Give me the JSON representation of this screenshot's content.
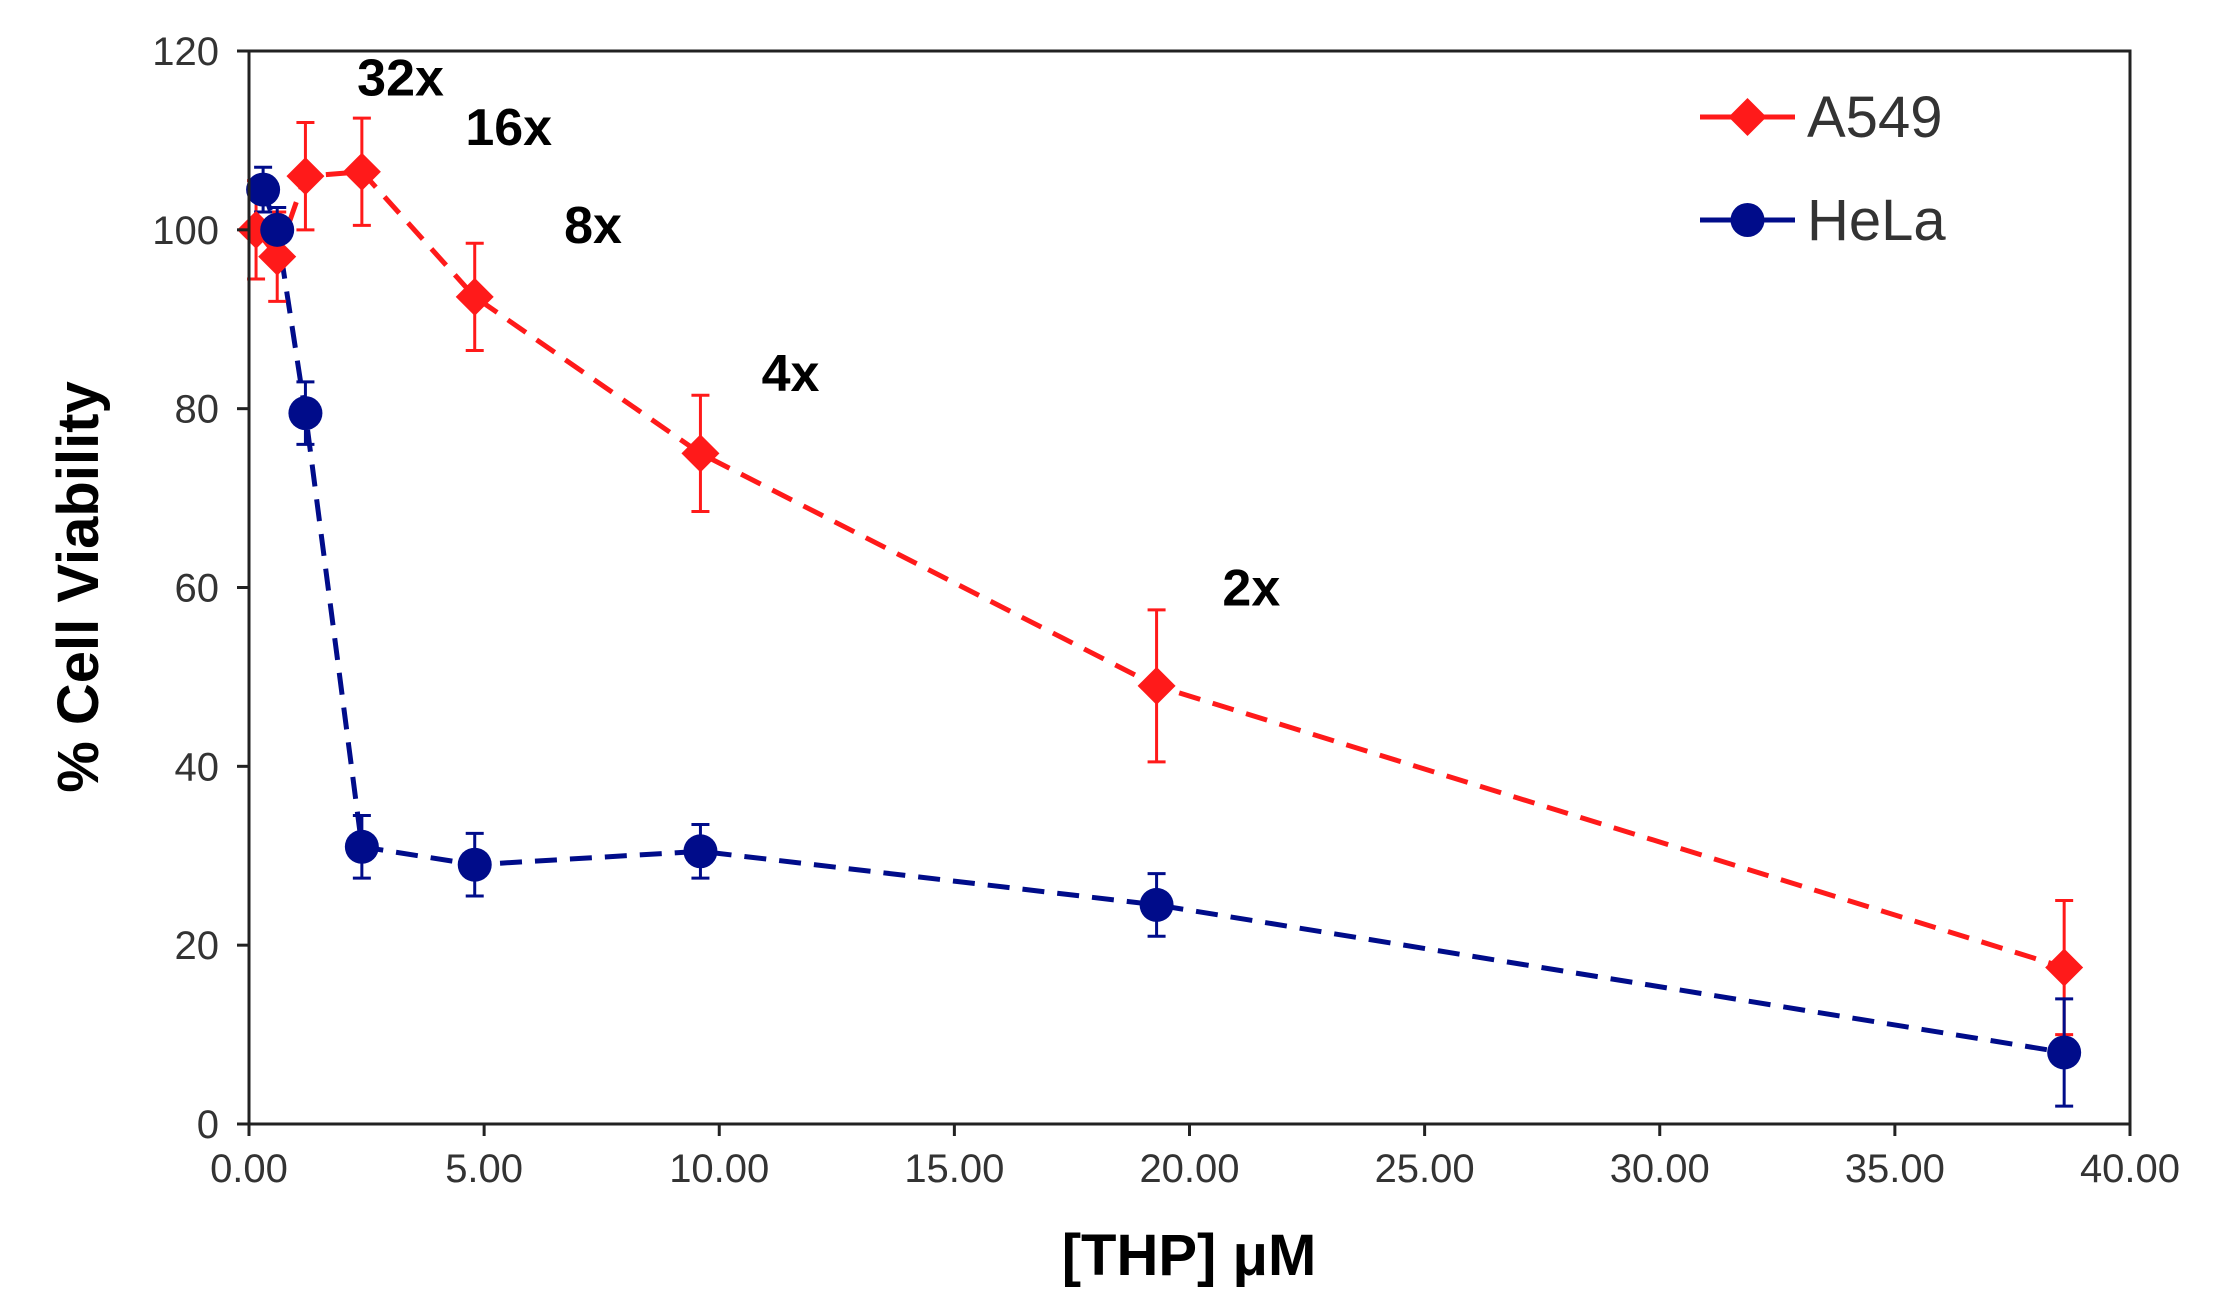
{
  "chart_data": {
    "type": "line",
    "title": "",
    "xlabel": "[THP] μM",
    "ylabel": "% Cell Viability",
    "xlim": [
      0,
      40
    ],
    "ylim": [
      0,
      120
    ],
    "x_ticks": [
      0,
      5,
      10,
      15,
      20,
      25,
      30,
      35,
      40
    ],
    "x_tick_labels": [
      "0.00",
      "5.00",
      "10.00",
      "15.00",
      "20.00",
      "25.00",
      "30.00",
      "35.00",
      "40.00"
    ],
    "y_ticks": [
      0,
      20,
      40,
      60,
      80,
      100,
      120
    ],
    "y_tick_labels": [
      "0",
      "20",
      "40",
      "60",
      "80",
      "100",
      "120"
    ],
    "grid": false,
    "legend_position": "top-right",
    "series": [
      {
        "name": "A549",
        "color": "#ff1a1a",
        "marker": "diamond",
        "line_style": "dashed",
        "x": [
          0.15,
          0.6,
          1.2,
          2.4,
          4.8,
          9.6,
          19.3,
          38.6
        ],
        "y": [
          100,
          97,
          106,
          106.5,
          92.5,
          75,
          49,
          17.5
        ],
        "error": [
          5.5,
          5,
          6,
          6,
          6,
          6.5,
          8.5,
          7.5
        ]
      },
      {
        "name": "HeLa",
        "color": "#000c8a",
        "marker": "circle",
        "line_style": "dashed",
        "x": [
          0.3,
          0.6,
          1.2,
          2.4,
          4.8,
          9.6,
          19.3,
          38.6
        ],
        "y": [
          104.5,
          100,
          79.5,
          31,
          29,
          30.5,
          24.5,
          8
        ],
        "error": [
          2.5,
          2.5,
          3.5,
          3.5,
          3.5,
          3,
          3.5,
          6
        ]
      }
    ],
    "annotations": [
      {
        "text": "32x",
        "x": 2.3,
        "y": 115
      },
      {
        "text": "16x",
        "x": 4.6,
        "y": 109.5
      },
      {
        "text": "8x",
        "x": 6.7,
        "y": 98.5
      },
      {
        "text": "4x",
        "x": 10.9,
        "y": 82
      },
      {
        "text": "2x",
        "x": 20.7,
        "y": 58
      }
    ]
  }
}
